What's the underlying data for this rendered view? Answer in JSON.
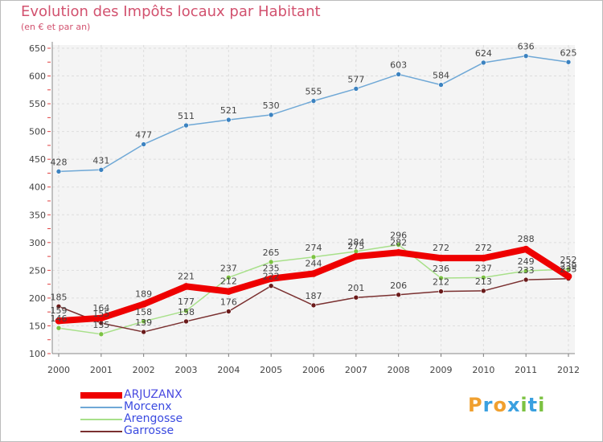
{
  "title": "Evolution des Impôts locaux par Habitant",
  "subtitle": "(en € et par an)",
  "logo": {
    "text": "Proxiti",
    "letters": [
      "P",
      "r",
      "o",
      "x",
      "i",
      "t",
      "i"
    ],
    "colors": [
      "#f0a030",
      "#3aa0e0",
      "#f0a030",
      "#3aa0e0",
      "#7cc242",
      "#3aa0e0",
      "#7cc242"
    ]
  },
  "chart_data": {
    "type": "line",
    "x": [
      2000,
      2001,
      2002,
      2003,
      2004,
      2005,
      2006,
      2007,
      2008,
      2009,
      2010,
      2011,
      2012
    ],
    "ylim": [
      100,
      650
    ],
    "yticks": [
      100,
      150,
      200,
      250,
      300,
      350,
      400,
      450,
      500,
      550,
      600,
      650
    ],
    "grid": true,
    "legend_position": "bottom-left",
    "series": [
      {
        "name": "Morcenx",
        "color": "#6fa8d6",
        "marker": "#3b82c0",
        "values": [
          428,
          431,
          477,
          511,
          521,
          530,
          555,
          577,
          603,
          584,
          624,
          636,
          625
        ]
      },
      {
        "name": "Arengosse",
        "color": "#a8e08a",
        "marker": "#7cc242",
        "values": [
          146,
          135,
          158,
          177,
          237,
          265,
          274,
          284,
          296,
          236,
          237,
          249,
          252
        ]
      },
      {
        "name": "Garrosse",
        "color": "#7a3030",
        "marker": "#6a1a1a",
        "values": [
          185,
          155,
          139,
          158,
          176,
          222,
          187,
          201,
          206,
          212,
          213,
          233,
          235
        ]
      },
      {
        "name": "ARJUZANX",
        "color": "#ee0000",
        "marker": "#ee0000",
        "values": [
          159,
          164,
          189,
          221,
          212,
          235,
          244,
          275,
          282,
          272,
          272,
          288,
          239
        ]
      }
    ]
  },
  "legend_order": [
    "ARJUZANX",
    "Morcenx",
    "Arengosse",
    "Garrosse"
  ]
}
